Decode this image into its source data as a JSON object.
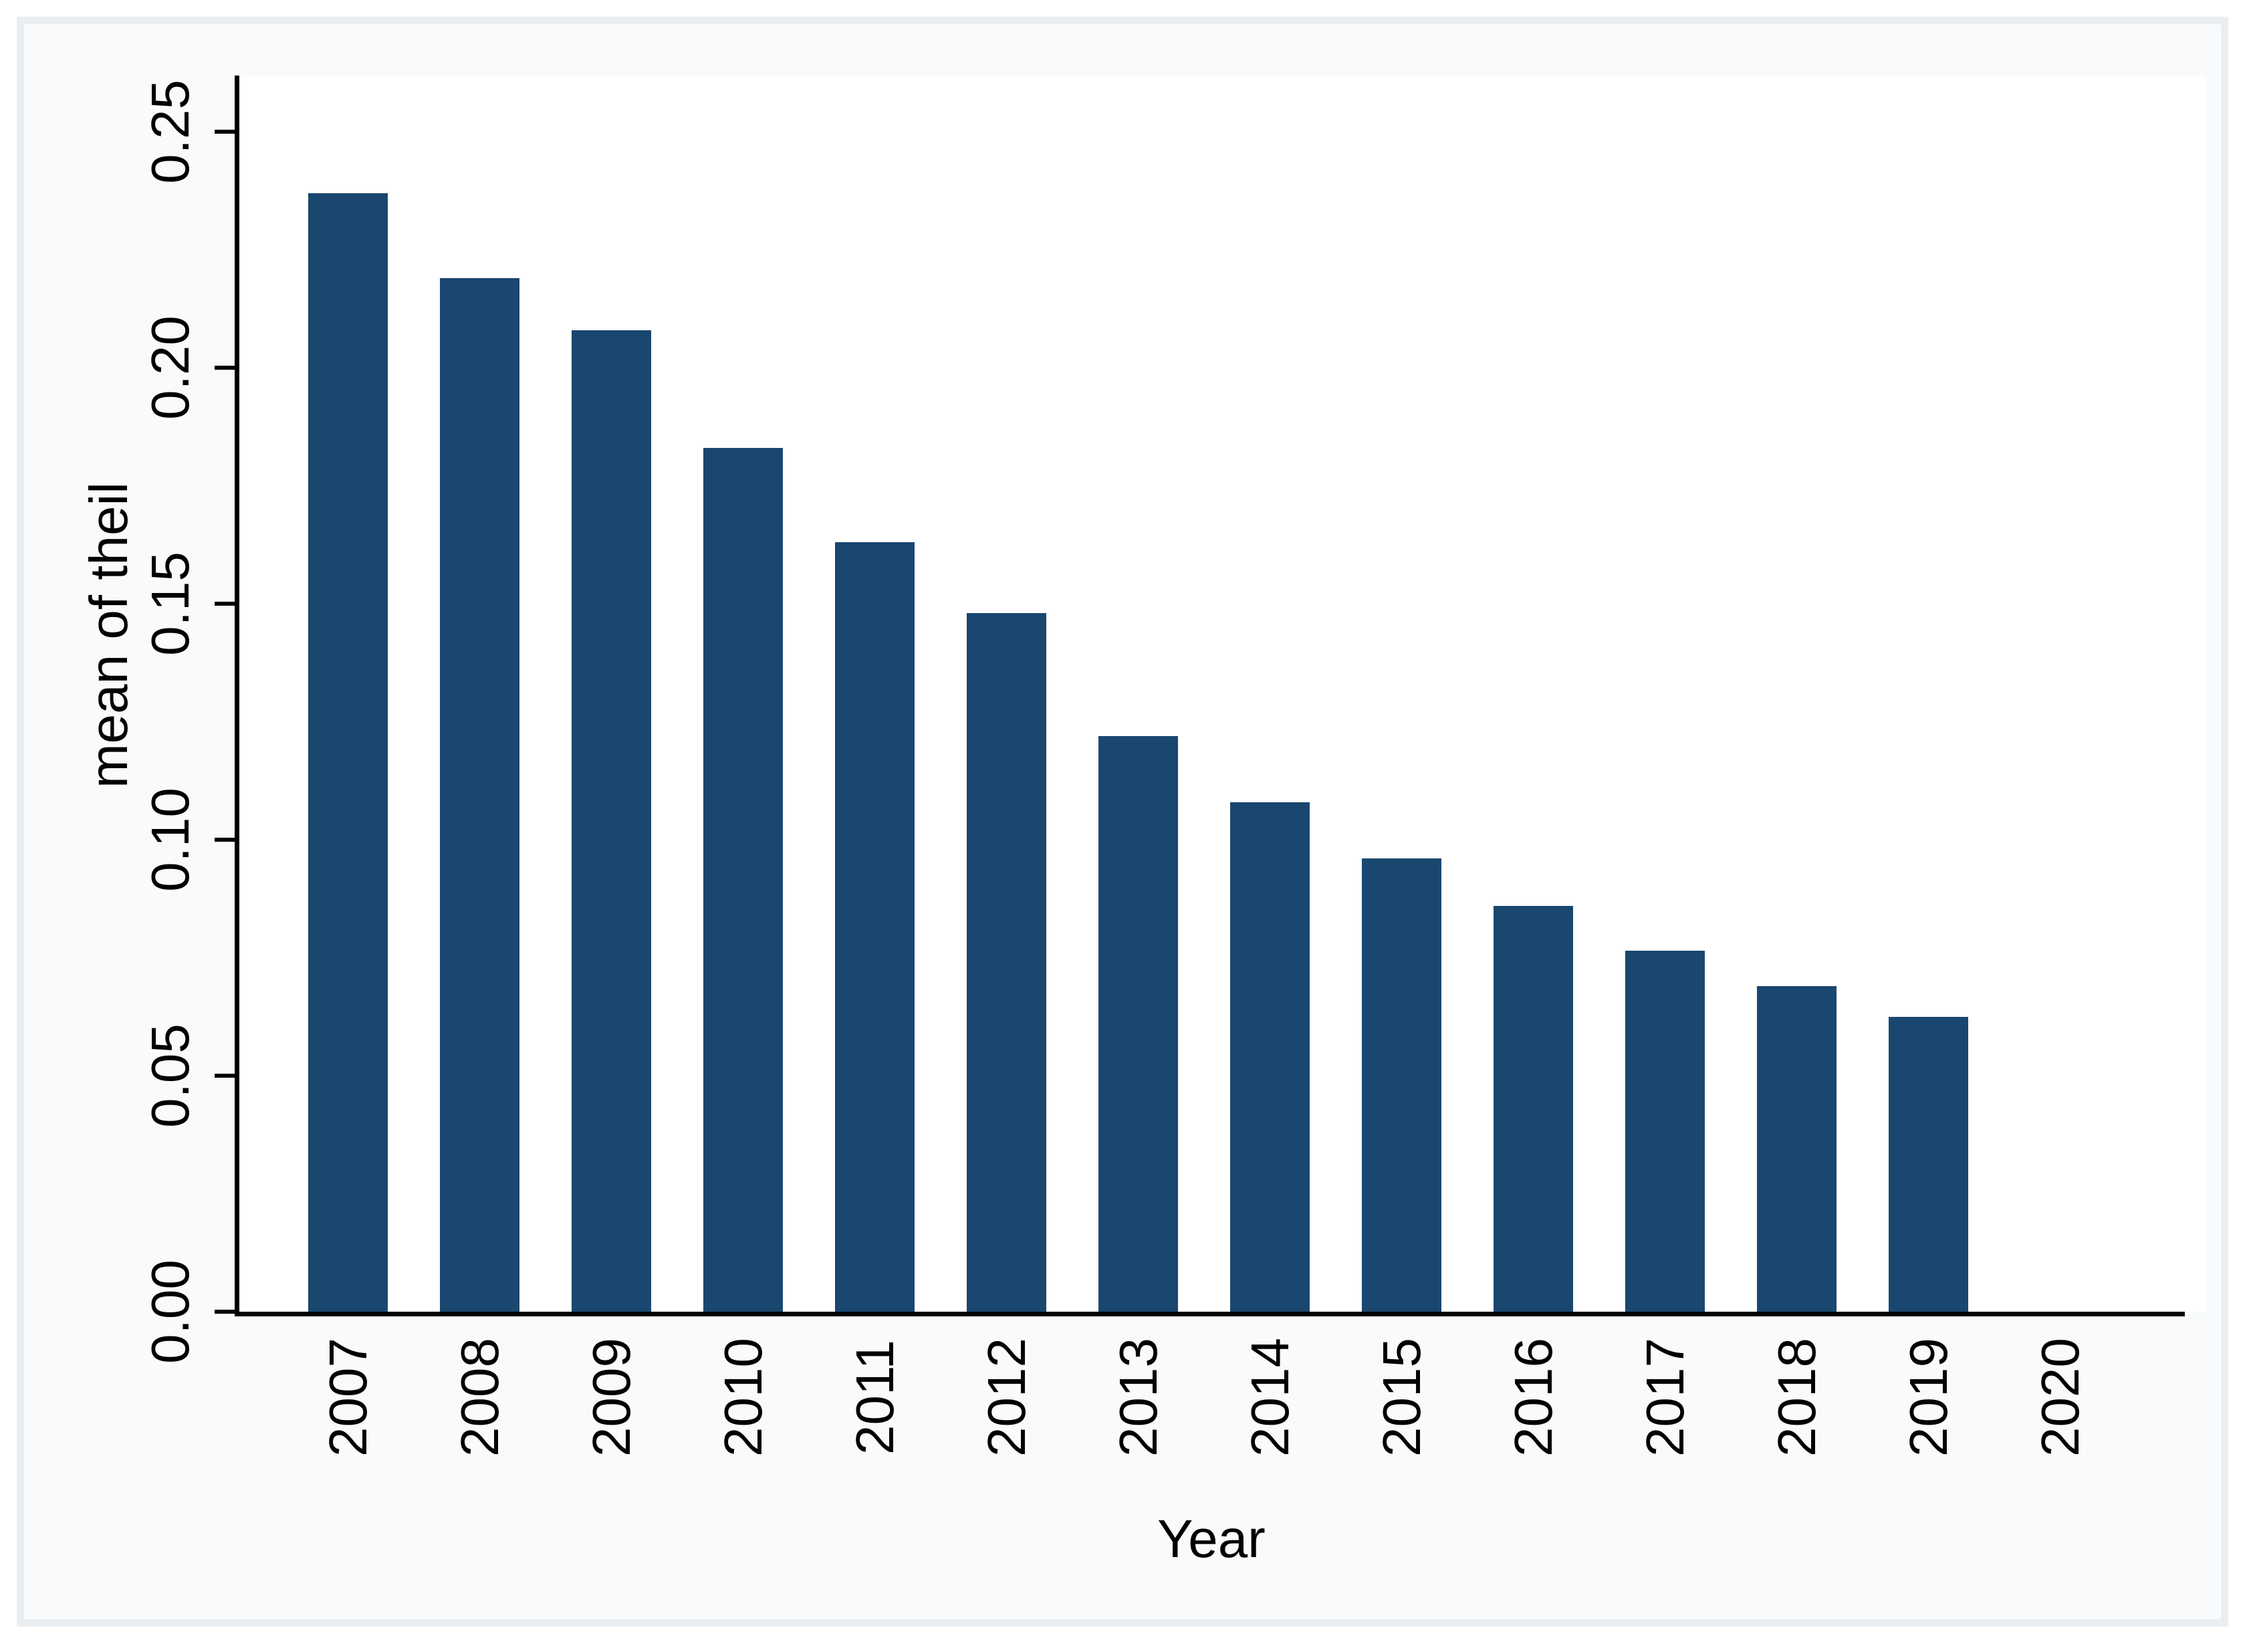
{
  "chart_data": {
    "type": "bar",
    "title": "",
    "categories": [
      "2007",
      "2008",
      "2009",
      "2010",
      "2011",
      "2012",
      "2013",
      "2014",
      "2015",
      "2016",
      "2017",
      "2018",
      "2019",
      "2020"
    ],
    "values": [
      0.237,
      0.219,
      0.208,
      0.183,
      0.163,
      0.148,
      0.122,
      0.108,
      0.096,
      0.086,
      0.0765,
      0.069,
      0.0625,
      0
    ],
    "xlabel": "Year",
    "ylabel": "mean of theil",
    "ylim": [
      0,
      0.25
    ],
    "ytick_values": [
      0,
      0.05,
      0.1,
      0.15,
      0.2,
      0.25
    ],
    "ytick_labels": [
      "0.00",
      "0.05",
      "0.10",
      "0.15",
      "0.20",
      "0.25"
    ],
    "grid": false,
    "legend": "none",
    "bar_orientation": "vertical",
    "tick_label_rotation_deg": -90
  },
  "colors": {
    "bar_fill": "#1a476f",
    "axis": "#000000",
    "text": "#000000",
    "plot_background": "#ffffff",
    "figure_background": "#f8fafb",
    "figure_border": "#e9eef2",
    "page_background": "#ffffff"
  }
}
